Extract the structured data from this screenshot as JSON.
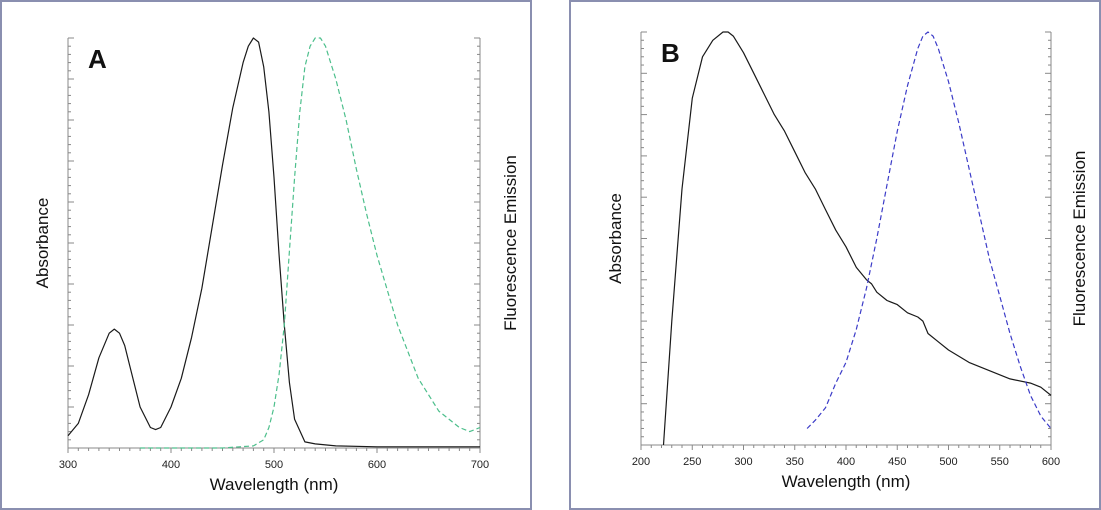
{
  "chart_data": [
    {
      "panel_label": "A",
      "type": "line",
      "xlabel": "Wavelength (nm)",
      "ylabel_left": "Absorbance",
      "ylabel_right": "Fluorescence Emission",
      "xlim": [
        300,
        700
      ],
      "xticks": [
        "300",
        "400",
        "500",
        "600",
        "700"
      ],
      "ylim": [
        0,
        1
      ],
      "grid": false,
      "series": [
        {
          "style": "solid",
          "color": "#1a1a1a",
          "x": [
            300,
            310,
            320,
            330,
            340,
            345,
            350,
            355,
            360,
            370,
            380,
            385,
            390,
            400,
            410,
            420,
            430,
            440,
            450,
            460,
            470,
            475,
            480,
            485,
            490,
            495,
            500,
            505,
            510,
            515,
            520,
            530,
            540,
            560,
            600,
            650,
            700
          ],
          "y": [
            0.03,
            0.06,
            0.13,
            0.22,
            0.28,
            0.29,
            0.28,
            0.25,
            0.2,
            0.1,
            0.05,
            0.045,
            0.05,
            0.1,
            0.17,
            0.27,
            0.39,
            0.54,
            0.69,
            0.83,
            0.94,
            0.98,
            1.0,
            0.99,
            0.93,
            0.82,
            0.66,
            0.47,
            0.3,
            0.16,
            0.07,
            0.015,
            0.01,
            0.005,
            0.003,
            0.003,
            0.003
          ]
        },
        {
          "style": "dashed",
          "color": "#4dbf8c",
          "x": [
            370,
            400,
            450,
            480,
            490,
            495,
            500,
            505,
            510,
            515,
            520,
            525,
            530,
            535,
            540,
            545,
            550,
            555,
            560,
            570,
            580,
            590,
            600,
            620,
            640,
            660,
            680,
            690,
            700
          ],
          "y": [
            0.0,
            0.0,
            0.0,
            0.005,
            0.02,
            0.05,
            0.1,
            0.18,
            0.3,
            0.48,
            0.66,
            0.82,
            0.93,
            0.98,
            1.0,
            1.0,
            0.98,
            0.94,
            0.9,
            0.8,
            0.68,
            0.57,
            0.47,
            0.3,
            0.17,
            0.09,
            0.05,
            0.04,
            0.05
          ]
        }
      ]
    },
    {
      "panel_label": "B",
      "type": "line",
      "xlabel": "Wavelength (nm)",
      "ylabel_left": "Absorbance",
      "ylabel_right": "Fluorescence Emission",
      "xlim": [
        200,
        600
      ],
      "xticks": [
        "200",
        "250",
        "300",
        "350",
        "400",
        "450",
        "500",
        "550",
        "600"
      ],
      "ylim": [
        0,
        1
      ],
      "grid": false,
      "series": [
        {
          "style": "solid",
          "color": "#1a1a1a",
          "x": [
            222,
            230,
            240,
            250,
            260,
            270,
            280,
            285,
            290,
            300,
            310,
            320,
            330,
            340,
            350,
            360,
            370,
            380,
            390,
            400,
            410,
            420,
            425,
            430,
            440,
            450,
            460,
            470,
            475,
            480,
            490,
            500,
            520,
            540,
            560,
            580,
            590,
            600
          ],
          "y": [
            0.0,
            0.3,
            0.62,
            0.84,
            0.94,
            0.98,
            1.0,
            1.0,
            0.99,
            0.95,
            0.9,
            0.85,
            0.8,
            0.76,
            0.71,
            0.66,
            0.62,
            0.57,
            0.52,
            0.48,
            0.43,
            0.4,
            0.39,
            0.37,
            0.35,
            0.34,
            0.32,
            0.31,
            0.3,
            0.27,
            0.25,
            0.23,
            0.2,
            0.18,
            0.16,
            0.15,
            0.14,
            0.12
          ]
        },
        {
          "style": "dashed",
          "color": "#3c3cc8",
          "x": [
            362,
            370,
            380,
            390,
            400,
            410,
            420,
            430,
            440,
            450,
            460,
            470,
            475,
            480,
            485,
            490,
            500,
            510,
            520,
            530,
            540,
            550,
            560,
            570,
            580,
            590,
            600
          ],
          "y": [
            0.04,
            0.06,
            0.09,
            0.15,
            0.2,
            0.28,
            0.38,
            0.5,
            0.63,
            0.76,
            0.87,
            0.96,
            0.99,
            1.0,
            0.99,
            0.96,
            0.88,
            0.78,
            0.67,
            0.56,
            0.45,
            0.36,
            0.27,
            0.19,
            0.12,
            0.07,
            0.04
          ]
        }
      ]
    }
  ]
}
